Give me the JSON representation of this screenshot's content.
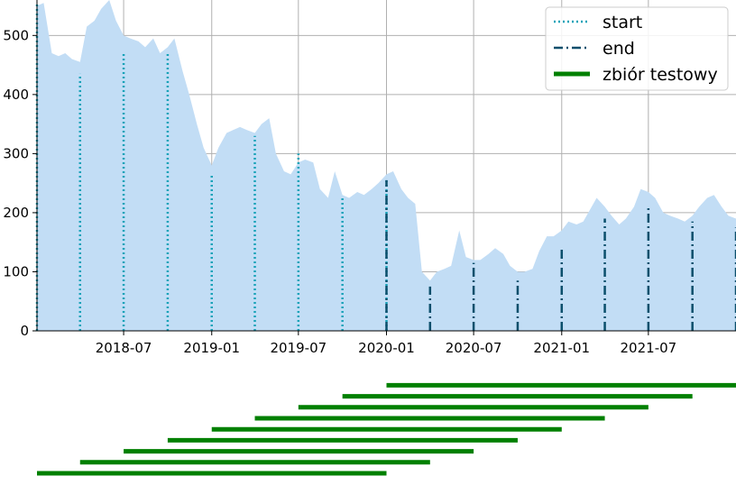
{
  "chart_data": {
    "type": "area",
    "x_unit": "date",
    "xlim": [
      "2018-01-01",
      "2021-12-31"
    ],
    "ylim": [
      0,
      560
    ],
    "grid": true,
    "y_ticks": [
      0,
      100,
      200,
      300,
      400,
      500
    ],
    "x_ticks": [
      "2018-07",
      "2019-01",
      "2019-07",
      "2020-01",
      "2020-07",
      "2021-01",
      "2021-07"
    ],
    "area_color": "#c2ddf5",
    "series": {
      "x": [
        "2018-01-01",
        "2018-01-15",
        "2018-02-01",
        "2018-02-15",
        "2018-03-01",
        "2018-03-15",
        "2018-04-01",
        "2018-04-15",
        "2018-05-01",
        "2018-05-15",
        "2018-06-01",
        "2018-06-15",
        "2018-07-01",
        "2018-07-15",
        "2018-08-01",
        "2018-08-15",
        "2018-09-01",
        "2018-09-15",
        "2018-10-01",
        "2018-10-15",
        "2018-11-01",
        "2018-11-15",
        "2018-12-01",
        "2018-12-15",
        "2019-01-01",
        "2019-01-15",
        "2019-02-01",
        "2019-02-15",
        "2019-03-01",
        "2019-03-15",
        "2019-04-01",
        "2019-04-15",
        "2019-05-01",
        "2019-05-15",
        "2019-06-01",
        "2019-06-15",
        "2019-07-01",
        "2019-07-15",
        "2019-08-01",
        "2019-08-15",
        "2019-09-01",
        "2019-09-15",
        "2019-10-01",
        "2019-10-15",
        "2019-11-01",
        "2019-11-15",
        "2019-12-01",
        "2019-12-15",
        "2020-01-01",
        "2020-01-15",
        "2020-02-01",
        "2020-02-15",
        "2020-03-01",
        "2020-03-15",
        "2020-04-01",
        "2020-04-15",
        "2020-05-01",
        "2020-05-15",
        "2020-06-01",
        "2020-06-15",
        "2020-07-01",
        "2020-07-15",
        "2020-08-01",
        "2020-08-15",
        "2020-09-01",
        "2020-09-15",
        "2020-10-01",
        "2020-10-15",
        "2020-11-01",
        "2020-11-15",
        "2020-12-01",
        "2020-12-15",
        "2021-01-01",
        "2021-01-15",
        "2021-02-01",
        "2021-02-15",
        "2021-03-01",
        "2021-03-15",
        "2021-04-01",
        "2021-04-15",
        "2021-05-01",
        "2021-05-15",
        "2021-06-01",
        "2021-06-15",
        "2021-07-01",
        "2021-07-15",
        "2021-08-01",
        "2021-08-15",
        "2021-09-01",
        "2021-09-15",
        "2021-10-01",
        "2021-10-15",
        "2021-11-01",
        "2021-11-15",
        "2021-12-01",
        "2021-12-15",
        "2021-12-31"
      ],
      "y": [
        550,
        555,
        470,
        465,
        470,
        460,
        455,
        515,
        525,
        545,
        560,
        525,
        500,
        495,
        490,
        480,
        495,
        470,
        480,
        495,
        440,
        400,
        350,
        310,
        280,
        310,
        335,
        340,
        345,
        340,
        335,
        350,
        360,
        300,
        270,
        265,
        285,
        290,
        285,
        240,
        225,
        270,
        230,
        225,
        235,
        230,
        240,
        250,
        265,
        270,
        240,
        225,
        215,
        100,
        85,
        100,
        105,
        110,
        170,
        125,
        120,
        120,
        130,
        140,
        130,
        110,
        100,
        100,
        105,
        135,
        160,
        160,
        170,
        185,
        180,
        185,
        205,
        225,
        210,
        195,
        180,
        190,
        210,
        240,
        235,
        225,
        200,
        195,
        190,
        185,
        195,
        210,
        225,
        230,
        210,
        195,
        190
      ]
    },
    "start_lines": [
      "2018-01-01",
      "2018-04-01",
      "2018-07-01",
      "2018-10-01",
      "2019-01-01",
      "2019-04-01",
      "2019-07-01",
      "2019-10-01",
      "2020-01-01"
    ],
    "end_lines": [
      "2020-01-01",
      "2020-04-01",
      "2020-07-01",
      "2020-10-01",
      "2021-01-01",
      "2021-04-01",
      "2021-07-01",
      "2021-10-01",
      "2021-12-31"
    ],
    "start_line_tops": [
      555,
      435,
      470,
      470,
      265,
      330,
      300,
      225,
      255
    ],
    "end_line_tops": [
      255,
      75,
      115,
      85,
      140,
      190,
      210,
      185,
      175
    ],
    "test_sets": [
      {
        "start": "2018-01-01",
        "end": "2020-01-01"
      },
      {
        "start": "2018-04-01",
        "end": "2020-04-01"
      },
      {
        "start": "2018-07-01",
        "end": "2020-07-01"
      },
      {
        "start": "2018-10-01",
        "end": "2020-10-01"
      },
      {
        "start": "2019-01-01",
        "end": "2021-01-01"
      },
      {
        "start": "2019-04-01",
        "end": "2021-04-01"
      },
      {
        "start": "2019-07-01",
        "end": "2021-07-01"
      },
      {
        "start": "2019-10-01",
        "end": "2021-10-01"
      },
      {
        "start": "2020-01-01",
        "end": "2021-12-31"
      }
    ],
    "legend": {
      "placement": "top-right",
      "entries": [
        {
          "label": "start",
          "style": "dotted",
          "color": "#17a2b8"
        },
        {
          "label": "end",
          "style": "dashdot",
          "color": "#0b4f6c"
        },
        {
          "label": "zbiór testowy",
          "style": "solid",
          "color": "#008000"
        }
      ]
    }
  }
}
